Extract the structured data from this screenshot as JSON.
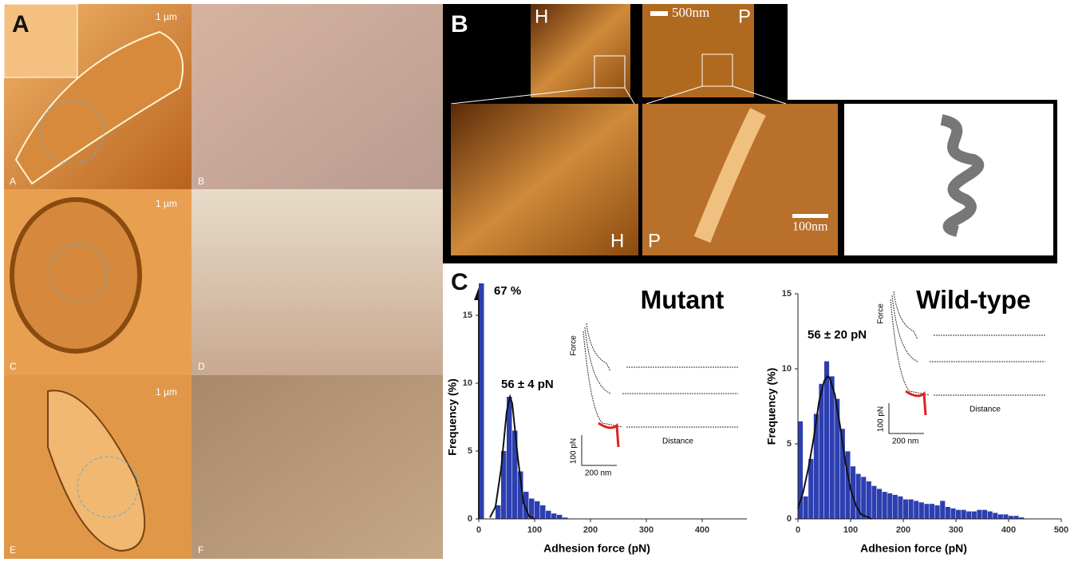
{
  "panels": {
    "A": {
      "letter": "A",
      "scale": [
        "1 µm",
        "1 µm",
        "1 µm"
      ],
      "sub": [
        "A",
        "B",
        "C",
        "D",
        "E",
        "F"
      ]
    },
    "B": {
      "letter": "B",
      "top": [
        "H",
        "P"
      ],
      "scale_top": "500nm",
      "bottom": [
        "H",
        "P"
      ],
      "scale_bottom": "100nm"
    },
    "C": {
      "letter": "C"
    }
  },
  "chart_data": [
    {
      "type": "histogram",
      "label": "Mutant",
      "fit_label": "56 ± 4 pN",
      "xlabel": "Adhesion force (pN)",
      "ylabel": "Frequency (%)",
      "bins": [
        0,
        10,
        20,
        30,
        40,
        50,
        60,
        70,
        80,
        90,
        100,
        110,
        120,
        130,
        140,
        150,
        160
      ],
      "values": [
        67,
        0,
        0,
        1,
        5,
        9,
        6.5,
        3.5,
        2,
        1.5,
        1.3,
        1,
        0.6,
        0.4,
        0.3,
        0.1
      ],
      "value_labels": [
        "67 %",
        null,
        null,
        null,
        null,
        null,
        null,
        null,
        null,
        null,
        null,
        null,
        null,
        null,
        null,
        null
      ],
      "color": "#2d3fb0",
      "fit": {
        "x": [
          20,
          30,
          40,
          50,
          56,
          60,
          70,
          80,
          90,
          100
        ],
        "values": [
          0.1,
          0.9,
          3.7,
          7.9,
          9,
          8.5,
          4.5,
          1.2,
          0.2,
          0
        ]
      },
      "xlim": [
        0,
        480
      ],
      "ylim": [
        0,
        15
      ],
      "xticks": [
        0,
        100,
        200,
        300,
        400
      ],
      "yticks": [
        0,
        5,
        10,
        15
      ],
      "inset": {
        "force": "Force",
        "distance": "Distance",
        "force_scale": "100 pN",
        "distance_scale": "200 nm"
      }
    },
    {
      "type": "histogram",
      "label": "Wild-type",
      "fit_label": "56 ± 20 pN",
      "xlabel": "Adhesion force (pN)",
      "ylabel": "Frequency  (%)",
      "bins": [
        0,
        10,
        20,
        30,
        40,
        50,
        60,
        70,
        80,
        90,
        100,
        110,
        120,
        130,
        140,
        150,
        160,
        170,
        180,
        190,
        200,
        210,
        220,
        230,
        240,
        250,
        260,
        270,
        280,
        290,
        300,
        310,
        320,
        330,
        340,
        350,
        360,
        370,
        380,
        390,
        400,
        410,
        420,
        430
      ],
      "values": [
        6.5,
        1.5,
        4,
        7,
        9,
        10.5,
        9.5,
        8,
        6,
        4.5,
        3.5,
        3,
        2.8,
        2.5,
        2.2,
        2,
        1.8,
        1.7,
        1.6,
        1.5,
        1.3,
        1.3,
        1.2,
        1.1,
        1,
        1,
        0.9,
        1.2,
        0.8,
        0.7,
        0.6,
        0.6,
        0.5,
        0.5,
        0.6,
        0.6,
        0.5,
        0.4,
        0.3,
        0.3,
        0.2,
        0.2,
        0.1
      ],
      "color": "#2d3fb0",
      "fit": {
        "x": [
          0,
          10,
          20,
          30,
          40,
          50,
          56,
          60,
          70,
          80,
          90,
          100,
          110,
          120,
          140
        ],
        "values": [
          0.7,
          1.8,
          3.4,
          5.4,
          7.8,
          9.2,
          9.5,
          9.4,
          8.3,
          6.2,
          3.8,
          2,
          0.9,
          0.3,
          0
        ]
      },
      "xlim": [
        0,
        500
      ],
      "ylim": [
        0,
        15
      ],
      "xticks": [
        0,
        100,
        200,
        300,
        400,
        500
      ],
      "yticks": [
        0,
        5,
        10,
        15
      ],
      "inset": {
        "force": "Force",
        "distance": "Distance",
        "force_scale": "100 pN",
        "distance_scale": "200 nm"
      }
    }
  ]
}
